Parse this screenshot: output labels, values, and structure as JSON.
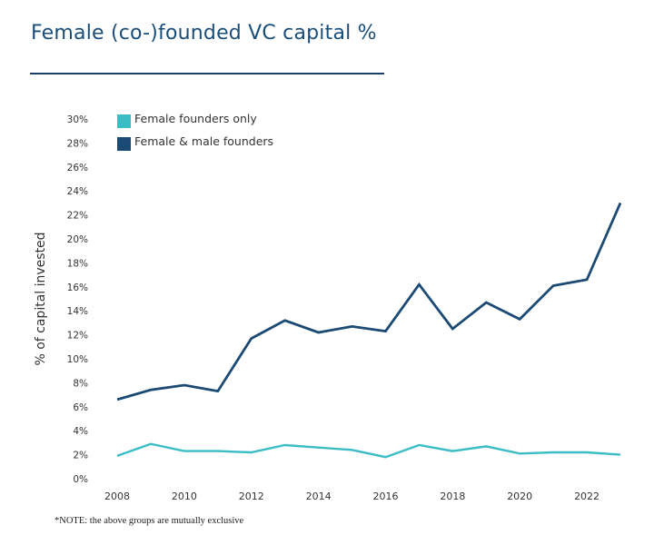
{
  "chart_data": {
    "type": "line",
    "title": "Female (co-)founded VC capital %",
    "xlabel": "",
    "ylabel": "% of capital invested",
    "x": [
      2008,
      2009,
      2010,
      2011,
      2012,
      2013,
      2014,
      2015,
      2016,
      2017,
      2018,
      2019,
      2020,
      2021,
      2022,
      2023
    ],
    "xticks": [
      2008,
      2010,
      2012,
      2014,
      2016,
      2018,
      2020,
      2022
    ],
    "xtick_labels": [
      "2008",
      "2010",
      "2012",
      "2014",
      "2016",
      "2018",
      "2020",
      "2022"
    ],
    "ylim": [
      0,
      30
    ],
    "yticks": [
      0,
      2,
      4,
      6,
      8,
      10,
      12,
      14,
      16,
      18,
      20,
      22,
      24,
      26,
      28,
      30
    ],
    "ytick_labels": [
      "0%",
      "2%",
      "4%",
      "6%",
      "8%",
      "10%",
      "12%",
      "14%",
      "16%",
      "18%",
      "20%",
      "22%",
      "24%",
      "26%",
      "28%",
      "30%"
    ],
    "grid": false,
    "legend_position": "top-left",
    "series": [
      {
        "name": "Female founders only",
        "color": "#3bbdc6",
        "values": [
          1.9,
          2.9,
          2.3,
          2.3,
          2.2,
          2.8,
          2.6,
          2.4,
          1.8,
          2.8,
          2.3,
          2.7,
          2.1,
          2.2,
          2.2,
          2.0
        ]
      },
      {
        "name": "Female & male founders",
        "color": "#1b4a74",
        "values": [
          6.6,
          7.4,
          7.8,
          7.3,
          11.7,
          13.2,
          12.2,
          12.7,
          12.3,
          16.2,
          12.5,
          14.7,
          13.3,
          16.1,
          16.6,
          23.0
        ]
      }
    ],
    "note": "*NOTE: the above groups are mutually exclusive"
  }
}
